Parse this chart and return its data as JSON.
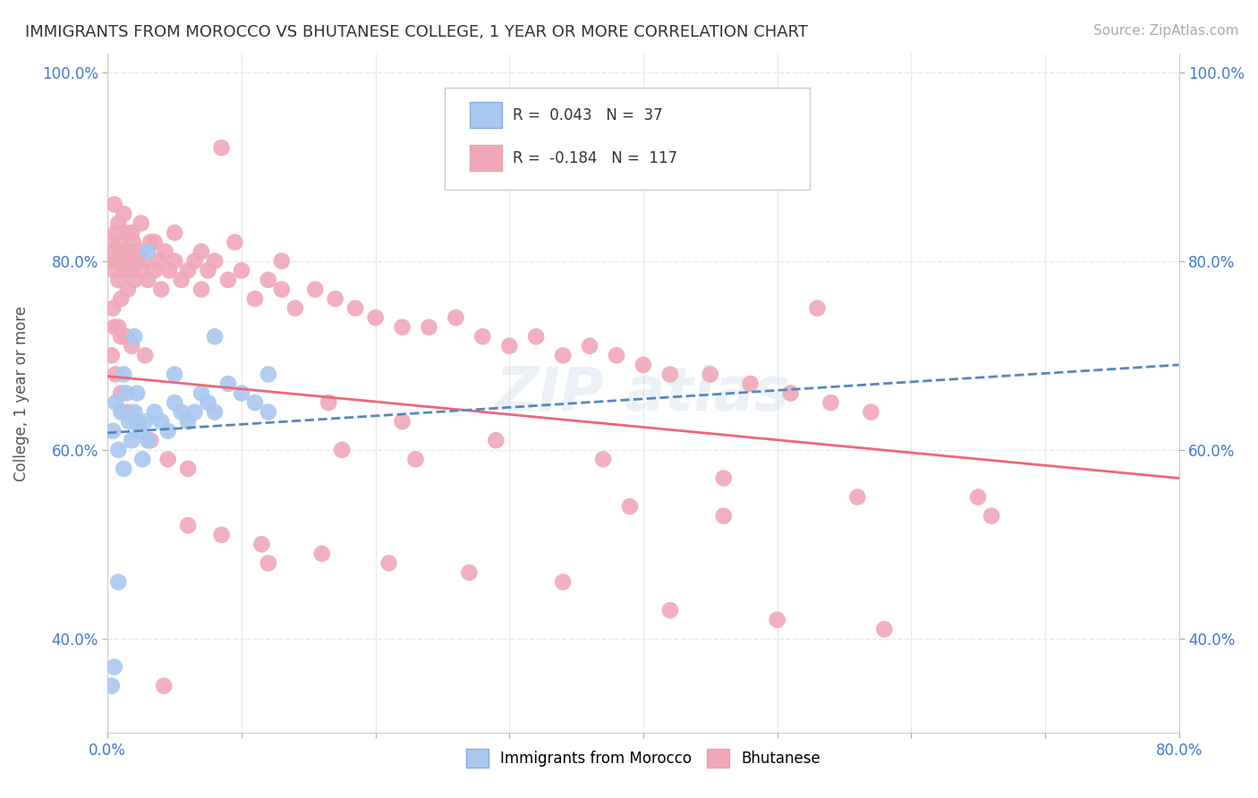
{
  "title": "IMMIGRANTS FROM MOROCCO VS BHUTANESE COLLEGE, 1 YEAR OR MORE CORRELATION CHART",
  "source_text": "Source: ZipAtlas.com",
  "ylabel": "College, 1 year or more",
  "x_min": 0.0,
  "x_max": 0.8,
  "y_min": 0.3,
  "y_max": 1.02,
  "x_ticks": [
    0.0,
    0.1,
    0.2,
    0.3,
    0.4,
    0.5,
    0.6,
    0.7,
    0.8
  ],
  "x_tick_labels": [
    "0.0%",
    "",
    "",
    "",
    "",
    "",
    "",
    "",
    "80.0%"
  ],
  "y_ticks": [
    0.4,
    0.6,
    0.8,
    1.0
  ],
  "y_tick_labels": [
    "40.0%",
    "60.0%",
    "80.0%",
    "100.0%"
  ],
  "background_color": "#ffffff",
  "grid_color": "#e8e8e8",
  "blue_color": "#a8c8f0",
  "pink_color": "#f0a8b8",
  "blue_line_color": "#5588bb",
  "pink_line_color": "#ee6677",
  "legend_r_blue": "0.043",
  "legend_n_blue": "37",
  "legend_r_pink": "-0.184",
  "legend_n_pink": "117",
  "label_blue": "Immigrants from Morocco",
  "label_pink": "Bhutanese",
  "axis_label_color": "#4477cc",
  "blue_scatter_x": [
    0.004,
    0.006,
    0.008,
    0.01,
    0.012,
    0.014,
    0.016,
    0.018,
    0.02,
    0.022,
    0.024,
    0.026,
    0.028,
    0.03,
    0.035,
    0.04,
    0.045,
    0.05,
    0.055,
    0.06,
    0.065,
    0.07,
    0.075,
    0.08,
    0.09,
    0.1,
    0.11,
    0.12,
    0.003,
    0.005,
    0.008,
    0.012,
    0.02,
    0.03,
    0.05,
    0.08,
    0.12
  ],
  "blue_scatter_y": [
    0.62,
    0.65,
    0.6,
    0.64,
    0.68,
    0.66,
    0.63,
    0.61,
    0.64,
    0.66,
    0.62,
    0.59,
    0.63,
    0.61,
    0.64,
    0.63,
    0.62,
    0.65,
    0.64,
    0.63,
    0.64,
    0.66,
    0.65,
    0.64,
    0.67,
    0.66,
    0.65,
    0.64,
    0.35,
    0.37,
    0.46,
    0.58,
    0.72,
    0.81,
    0.68,
    0.72,
    0.68
  ],
  "pink_scatter_x": [
    0.002,
    0.003,
    0.004,
    0.005,
    0.006,
    0.007,
    0.008,
    0.009,
    0.01,
    0.011,
    0.012,
    0.013,
    0.014,
    0.015,
    0.016,
    0.017,
    0.018,
    0.019,
    0.02,
    0.022,
    0.024,
    0.025,
    0.027,
    0.03,
    0.032,
    0.035,
    0.038,
    0.04,
    0.043,
    0.046,
    0.05,
    0.055,
    0.06,
    0.065,
    0.07,
    0.075,
    0.08,
    0.09,
    0.1,
    0.11,
    0.12,
    0.13,
    0.14,
    0.155,
    0.17,
    0.185,
    0.2,
    0.22,
    0.24,
    0.26,
    0.28,
    0.3,
    0.32,
    0.34,
    0.36,
    0.38,
    0.4,
    0.42,
    0.45,
    0.48,
    0.51,
    0.54,
    0.57,
    0.005,
    0.008,
    0.012,
    0.018,
    0.025,
    0.035,
    0.05,
    0.07,
    0.095,
    0.13,
    0.175,
    0.23,
    0.003,
    0.006,
    0.01,
    0.015,
    0.022,
    0.032,
    0.045,
    0.06,
    0.085,
    0.115,
    0.16,
    0.21,
    0.27,
    0.34,
    0.42,
    0.5,
    0.58,
    0.65,
    0.39,
    0.46,
    0.53,
    0.005,
    0.01,
    0.018,
    0.028,
    0.042,
    0.06,
    0.085,
    0.12,
    0.165,
    0.22,
    0.29,
    0.37,
    0.46,
    0.56,
    0.66,
    0.004,
    0.008,
    0.014
  ],
  "pink_scatter_y": [
    0.8,
    0.82,
    0.81,
    0.79,
    0.83,
    0.8,
    0.78,
    0.82,
    0.76,
    0.81,
    0.79,
    0.83,
    0.8,
    0.77,
    0.81,
    0.8,
    0.79,
    0.82,
    0.78,
    0.8,
    0.81,
    0.79,
    0.8,
    0.78,
    0.82,
    0.79,
    0.8,
    0.77,
    0.81,
    0.79,
    0.8,
    0.78,
    0.79,
    0.8,
    0.77,
    0.79,
    0.8,
    0.78,
    0.79,
    0.76,
    0.78,
    0.77,
    0.75,
    0.77,
    0.76,
    0.75,
    0.74,
    0.73,
    0.73,
    0.74,
    0.72,
    0.71,
    0.72,
    0.7,
    0.71,
    0.7,
    0.69,
    0.68,
    0.68,
    0.67,
    0.66,
    0.65,
    0.64,
    0.86,
    0.84,
    0.85,
    0.83,
    0.84,
    0.82,
    0.83,
    0.81,
    0.82,
    0.8,
    0.6,
    0.59,
    0.7,
    0.68,
    0.66,
    0.64,
    0.63,
    0.61,
    0.59,
    0.52,
    0.51,
    0.5,
    0.49,
    0.48,
    0.47,
    0.46,
    0.43,
    0.42,
    0.41,
    0.55,
    0.54,
    0.53,
    0.75,
    0.73,
    0.72,
    0.71,
    0.7,
    0.35,
    0.58,
    0.92,
    0.48,
    0.65,
    0.63,
    0.61,
    0.59,
    0.57,
    0.55,
    0.53,
    0.75,
    0.73,
    0.72
  ],
  "blue_trend_x": [
    0.0,
    0.8
  ],
  "blue_trend_y_start": 0.618,
  "blue_trend_y_end": 0.69,
  "pink_trend_x": [
    0.0,
    0.8
  ],
  "pink_trend_y_start": 0.678,
  "pink_trend_y_end": 0.57
}
